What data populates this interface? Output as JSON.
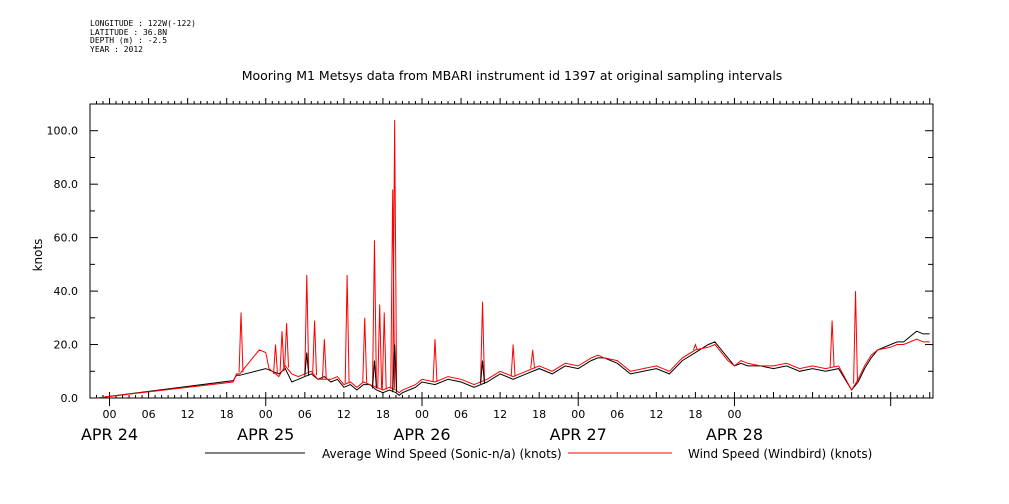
{
  "header": {
    "longitude": "LONGITUDE : 122W(-122)",
    "latitude": "LATITUDE : 36.8N",
    "depth": "DEPTH (m) : -2.5",
    "year": "YEAR : 2012"
  },
  "colors": {
    "avg_series": "#000000",
    "windbird_series": "#ff0000",
    "axis": "#000000"
  },
  "chart_data": {
    "type": "line",
    "title": "Mooring M1 Metsys data from MBARI instrument id 1397 at original sampling intervals",
    "ylabel": "knots",
    "xlabel": "",
    "ylim": [
      0,
      110
    ],
    "y_ticks": [
      "0.0",
      "20.0",
      "40.0",
      "60.0",
      "80.0",
      "100.0"
    ],
    "x_hour_labels": [
      "00",
      "06",
      "12",
      "18",
      "00",
      "06",
      "12",
      "18",
      "00",
      "06",
      "12",
      "18",
      "00",
      "06",
      "12",
      "18",
      "00"
    ],
    "x_day_labels": [
      "APR 24",
      "APR 25",
      "APR 26",
      "APR 27",
      "APR 28"
    ],
    "grid": false,
    "legend_placement": "bottom",
    "x_units": "hours since APR 24 00",
    "series": [
      {
        "name": "Average Wind Speed (Sonic-n/a) (knots)",
        "color": "#000000",
        "x": [
          -2,
          19,
          19.5,
          20,
          24,
          25,
          26,
          27,
          28,
          29,
          30,
          31,
          32,
          33,
          34,
          35,
          36,
          37,
          38,
          39,
          40,
          41,
          42,
          43,
          44,
          44.5,
          45,
          46,
          47,
          48,
          50,
          52,
          54,
          56,
          58,
          60,
          62,
          64,
          66,
          68,
          70,
          72,
          74,
          75,
          76,
          78,
          80,
          82,
          84,
          86,
          88,
          90,
          92,
          93,
          94,
          95,
          96,
          97,
          98,
          100,
          102,
          104,
          106,
          108,
          110,
          112,
          114,
          115,
          116,
          117,
          118,
          120,
          121,
          122,
          123,
          124,
          125,
          126
        ],
        "y": [
          0,
          6.5,
          8.5,
          8.5,
          11,
          10,
          9,
          11,
          6,
          7,
          8,
          9,
          7,
          8,
          6,
          7,
          4,
          5,
          3,
          5,
          5,
          3,
          2,
          3,
          2,
          1,
          2,
          3,
          4,
          6,
          5,
          7,
          6,
          4,
          6,
          9,
          7,
          9,
          11,
          9,
          12,
          11,
          14,
          15,
          15,
          13,
          9,
          10,
          11,
          9,
          14,
          17,
          20,
          21,
          18,
          15,
          12,
          13,
          12,
          12,
          11,
          12,
          10,
          11,
          10,
          11,
          3,
          6,
          11,
          15,
          18,
          20,
          21,
          21,
          23,
          25,
          24,
          24
        ]
      },
      {
        "name": "Wind Speed (Windbird) (knots)",
        "color": "#ff0000",
        "x": [
          -2,
          19,
          19.5,
          20,
          21,
          22,
          23,
          24,
          24.5,
          25,
          26,
          27,
          28,
          29,
          30,
          31,
          32,
          33,
          34,
          35,
          36,
          37,
          38,
          39,
          40,
          41,
          42,
          43,
          44,
          44.5,
          45,
          46,
          47,
          48,
          50,
          52,
          54,
          56,
          58,
          60,
          62,
          64,
          66,
          68,
          70,
          72,
          74,
          75,
          76,
          78,
          80,
          82,
          84,
          86,
          88,
          90,
          92,
          93,
          94,
          95,
          96,
          97,
          98,
          100,
          102,
          104,
          106,
          108,
          110,
          112,
          114,
          115,
          116,
          117,
          118,
          120,
          121,
          122,
          123,
          124,
          125,
          126
        ],
        "y": [
          0,
          6,
          9,
          9,
          12,
          15,
          18,
          17,
          11,
          10,
          8,
          12,
          9,
          8,
          9,
          10,
          7,
          7,
          7,
          8,
          5,
          6,
          4,
          6,
          5,
          4,
          3,
          4,
          3,
          2,
          3,
          4,
          5,
          7,
          6,
          8,
          7,
          5,
          7,
          10,
          8,
          10,
          12,
          10,
          13,
          12,
          15,
          16,
          15,
          14,
          10,
          11,
          12,
          10,
          15,
          18,
          19,
          20,
          17,
          14,
          12,
          14,
          13,
          12,
          12,
          13,
          11,
          12,
          11,
          12,
          3,
          7,
          12,
          16,
          18,
          19,
          20,
          20,
          21,
          22,
          21,
          21
        ]
      }
    ],
    "spikes": [
      {
        "series": 1,
        "x": 20.2,
        "y": 32
      },
      {
        "series": 1,
        "x": 25.5,
        "y": 20
      },
      {
        "series": 1,
        "x": 26.5,
        "y": 25
      },
      {
        "series": 1,
        "x": 27.2,
        "y": 28
      },
      {
        "series": 1,
        "x": 30.3,
        "y": 46
      },
      {
        "series": 1,
        "x": 31.5,
        "y": 29
      },
      {
        "series": 1,
        "x": 33.0,
        "y": 22
      },
      {
        "series": 1,
        "x": 36.5,
        "y": 46
      },
      {
        "series": 1,
        "x": 39.2,
        "y": 30
      },
      {
        "series": 1,
        "x": 40.7,
        "y": 59
      },
      {
        "series": 1,
        "x": 41.5,
        "y": 35
      },
      {
        "series": 1,
        "x": 42.2,
        "y": 32
      },
      {
        "series": 1,
        "x": 43.5,
        "y": 78
      },
      {
        "series": 1,
        "x": 43.8,
        "y": 104
      },
      {
        "series": 1,
        "x": 50.0,
        "y": 22
      },
      {
        "series": 1,
        "x": 57.3,
        "y": 36
      },
      {
        "series": 1,
        "x": 62.0,
        "y": 20
      },
      {
        "series": 1,
        "x": 65.0,
        "y": 18
      },
      {
        "series": 1,
        "x": 90.0,
        "y": 20
      },
      {
        "series": 1,
        "x": 111.0,
        "y": 29
      },
      {
        "series": 1,
        "x": 114.6,
        "y": 40
      },
      {
        "series": 0,
        "x": 43.8,
        "y": 20
      },
      {
        "series": 0,
        "x": 40.7,
        "y": 14
      },
      {
        "series": 0,
        "x": 57.3,
        "y": 14
      },
      {
        "series": 0,
        "x": 30.3,
        "y": 17
      }
    ]
  }
}
